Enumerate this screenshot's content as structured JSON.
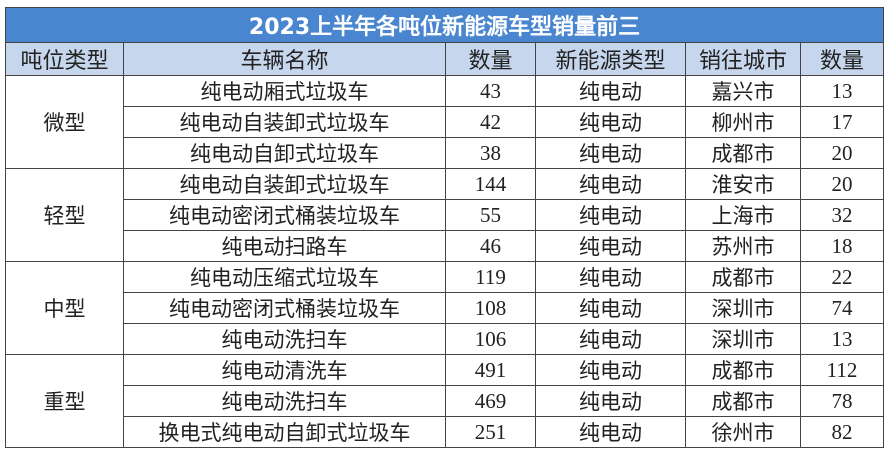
{
  "title": "2023上半年各吨位新能源车型销量前三",
  "headers": [
    "吨位类型",
    "车辆名称",
    "数量",
    "新能源类型",
    "销往城市",
    "数量"
  ],
  "groups": [
    {
      "category": "微型",
      "rows": [
        {
          "name": "纯电动厢式垃圾车",
          "qty": "43",
          "type": "纯电动",
          "city": "嘉兴市",
          "city_qty": "13"
        },
        {
          "name": "纯电动自装卸式垃圾车",
          "qty": "42",
          "type": "纯电动",
          "city": "柳州市",
          "city_qty": "17"
        },
        {
          "name": "纯电动自卸式垃圾车",
          "qty": "38",
          "type": "纯电动",
          "city": "成都市",
          "city_qty": "20"
        }
      ]
    },
    {
      "category": "轻型",
      "rows": [
        {
          "name": "纯电动自装卸式垃圾车",
          "qty": "144",
          "type": "纯电动",
          "city": "淮安市",
          "city_qty": "20"
        },
        {
          "name": "纯电动密闭式桶装垃圾车",
          "qty": "55",
          "type": "纯电动",
          "city": "上海市",
          "city_qty": "32"
        },
        {
          "name": "纯电动扫路车",
          "qty": "46",
          "type": "纯电动",
          "city": "苏州市",
          "city_qty": "18"
        }
      ]
    },
    {
      "category": "中型",
      "rows": [
        {
          "name": "纯电动压缩式垃圾车",
          "qty": "119",
          "type": "纯电动",
          "city": "成都市",
          "city_qty": "22"
        },
        {
          "name": "纯电动密闭式桶装垃圾车",
          "qty": "108",
          "type": "纯电动",
          "city": "深圳市",
          "city_qty": "74"
        },
        {
          "name": "纯电动洗扫车",
          "qty": "106",
          "type": "纯电动",
          "city": "深圳市",
          "city_qty": "13"
        }
      ]
    },
    {
      "category": "重型",
      "rows": [
        {
          "name": "纯电动清洗车",
          "qty": "491",
          "type": "纯电动",
          "city": "成都市",
          "city_qty": "112"
        },
        {
          "name": "纯电动洗扫车",
          "qty": "469",
          "type": "纯电动",
          "city": "成都市",
          "city_qty": "78"
        },
        {
          "name": "换电式纯电动自卸式垃圾车",
          "qty": "251",
          "type": "纯电动",
          "city": "徐州市",
          "city_qty": "82"
        }
      ]
    }
  ]
}
